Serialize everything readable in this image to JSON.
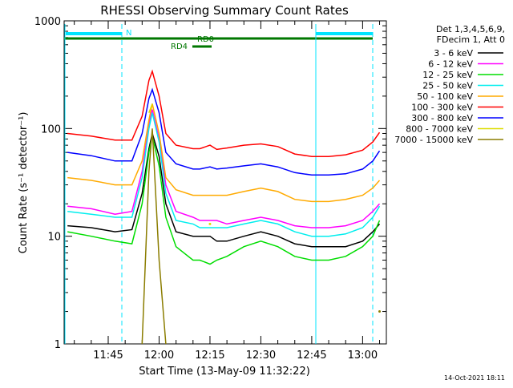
{
  "chart_data": {
    "type": "line",
    "title": "RHESSI Observing Summary Count Rates",
    "xlabel": "Start Time (13-May-09 11:32:22)",
    "ylabel": "Count Rate (s⁻¹ detector⁻¹)",
    "yscale": "log",
    "ylim": [
      1,
      1000
    ],
    "xlim": [
      "11:32",
      "13:07"
    ],
    "x_ticks": [
      "11:45",
      "12:00",
      "12:15",
      "12:30",
      "12:45",
      "13:00"
    ],
    "y_ticks": [
      "1",
      "10",
      "100",
      "1000"
    ],
    "legend_header": [
      "Det 1,3,4,5,6,9,",
      "FDecim 1, Att 0"
    ],
    "legend_position": "right",
    "timestamp": "14-Oct-2021 18:11",
    "x": [
      "11:33",
      "11:40",
      "11:47",
      "11:52",
      "11:55",
      "11:57",
      "11:58",
      "12:00",
      "12:02",
      "12:05",
      "12:10",
      "12:12",
      "12:15",
      "12:17",
      "12:20",
      "12:25",
      "12:30",
      "12:35",
      "12:40",
      "12:45",
      "12:50",
      "12:55",
      "13:00",
      "13:03",
      "13:05"
    ],
    "series": [
      {
        "name": "3 - 6 keV",
        "color": "#000000",
        "values": [
          12.5,
          12.0,
          11.0,
          11.5,
          25,
          65,
          90,
          55,
          20,
          11,
          10,
          10,
          10,
          9,
          9,
          10,
          11,
          10,
          8.5,
          8,
          8,
          8,
          9,
          11,
          13
        ]
      },
      {
        "name": "6 - 12 keV",
        "color": "#ff00ff",
        "values": [
          19,
          18,
          16,
          17,
          40,
          110,
          150,
          80,
          30,
          17,
          15,
          14,
          14,
          14,
          13,
          14,
          15,
          14,
          12.5,
          12,
          12,
          12.5,
          14,
          17,
          20
        ]
      },
      {
        "name": "12 - 25 keV",
        "color": "#00dd00",
        "values": [
          11,
          10,
          9,
          8.5,
          20,
          60,
          85,
          45,
          15,
          8,
          6,
          6,
          5.5,
          6,
          6.5,
          8,
          9,
          8,
          6.5,
          6,
          6,
          6.5,
          8,
          10,
          14
        ]
      },
      {
        "name": "25 - 50 keV",
        "color": "#00eeee",
        "values": [
          17,
          16,
          15,
          15,
          35,
          100,
          140,
          75,
          25,
          14,
          13,
          12,
          12,
          12,
          12,
          13,
          14,
          13,
          11,
          10,
          10,
          10.5,
          12,
          15,
          19
        ]
      },
      {
        "name": "50 - 100 keV",
        "color": "#ffaa00",
        "values": [
          35,
          33,
          30,
          30,
          50,
          120,
          170,
          90,
          35,
          27,
          24,
          24,
          24,
          24,
          24,
          26,
          28,
          26,
          22,
          21,
          21,
          22,
          24,
          28,
          33
        ]
      },
      {
        "name": "100 - 300 keV",
        "color": "#ff0000",
        "values": [
          90,
          85,
          78,
          78,
          130,
          280,
          340,
          200,
          90,
          70,
          65,
          65,
          70,
          64,
          66,
          70,
          72,
          68,
          58,
          55,
          55,
          57,
          63,
          75,
          92
        ]
      },
      {
        "name": "300 - 800 keV",
        "color": "#0000ff",
        "values": [
          60,
          56,
          50,
          50,
          90,
          190,
          230,
          140,
          60,
          47,
          42,
          42,
          44,
          42,
          43,
          45,
          47,
          44,
          39,
          37,
          37,
          38,
          42,
          50,
          62
        ]
      },
      {
        "name": "800 - 7000 keV",
        "color": "#dddd00",
        "values": [
          null,
          null,
          null,
          null,
          null,
          140,
          170,
          null,
          null,
          null,
          null,
          null,
          13,
          null,
          null,
          null,
          null,
          null,
          null,
          null,
          null,
          null,
          null,
          null,
          null
        ]
      },
      {
        "name": "7000 - 15000 keV",
        "color": "#8b7d00",
        "values": [
          null,
          null,
          null,
          null,
          1,
          40,
          100,
          6,
          1,
          null,
          null,
          null,
          null,
          null,
          null,
          null,
          null,
          null,
          null,
          null,
          null,
          null,
          null,
          null,
          2
        ]
      }
    ],
    "annotations": {
      "night_label": "N",
      "rd0_label": "RD0",
      "rd4_label": "RD4"
    }
  }
}
